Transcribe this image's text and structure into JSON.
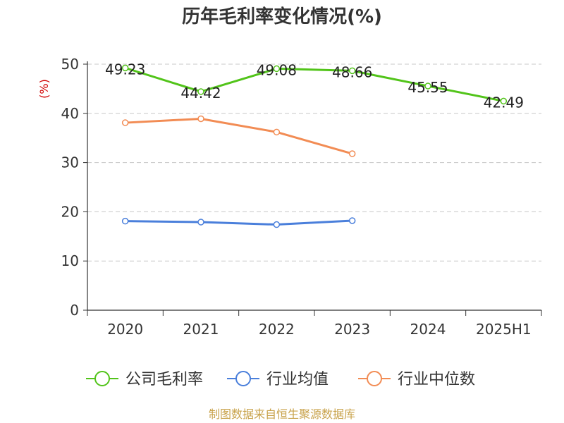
{
  "chart_data": {
    "type": "line",
    "title": "历年毛利率变化情况(%)",
    "ylabel": "(%)",
    "xlabel": "",
    "ylim": [
      0,
      50
    ],
    "yticks": [
      0,
      10,
      20,
      30,
      40,
      50
    ],
    "categories": [
      "2020",
      "2021",
      "2022",
      "2023",
      "2024",
      "2025H1"
    ],
    "grid": true,
    "legend_position": "bottom",
    "series": [
      {
        "name": "公司毛利率",
        "color": "#52c41a",
        "values": [
          49.23,
          44.42,
          49.08,
          48.66,
          45.55,
          42.49
        ],
        "labels": [
          "49.23",
          "44.42",
          "49.08",
          "48.66",
          "45.55",
          "42.49"
        ]
      },
      {
        "name": "行业均值",
        "color": "#4a7fdb",
        "values": [
          18.1,
          17.9,
          17.4,
          18.2,
          null,
          null
        ]
      },
      {
        "name": "行业中位数",
        "color": "#f28c54",
        "values": [
          38.1,
          38.9,
          36.2,
          31.8,
          null,
          null
        ]
      }
    ],
    "source": "制图数据来自恒生聚源数据库"
  }
}
